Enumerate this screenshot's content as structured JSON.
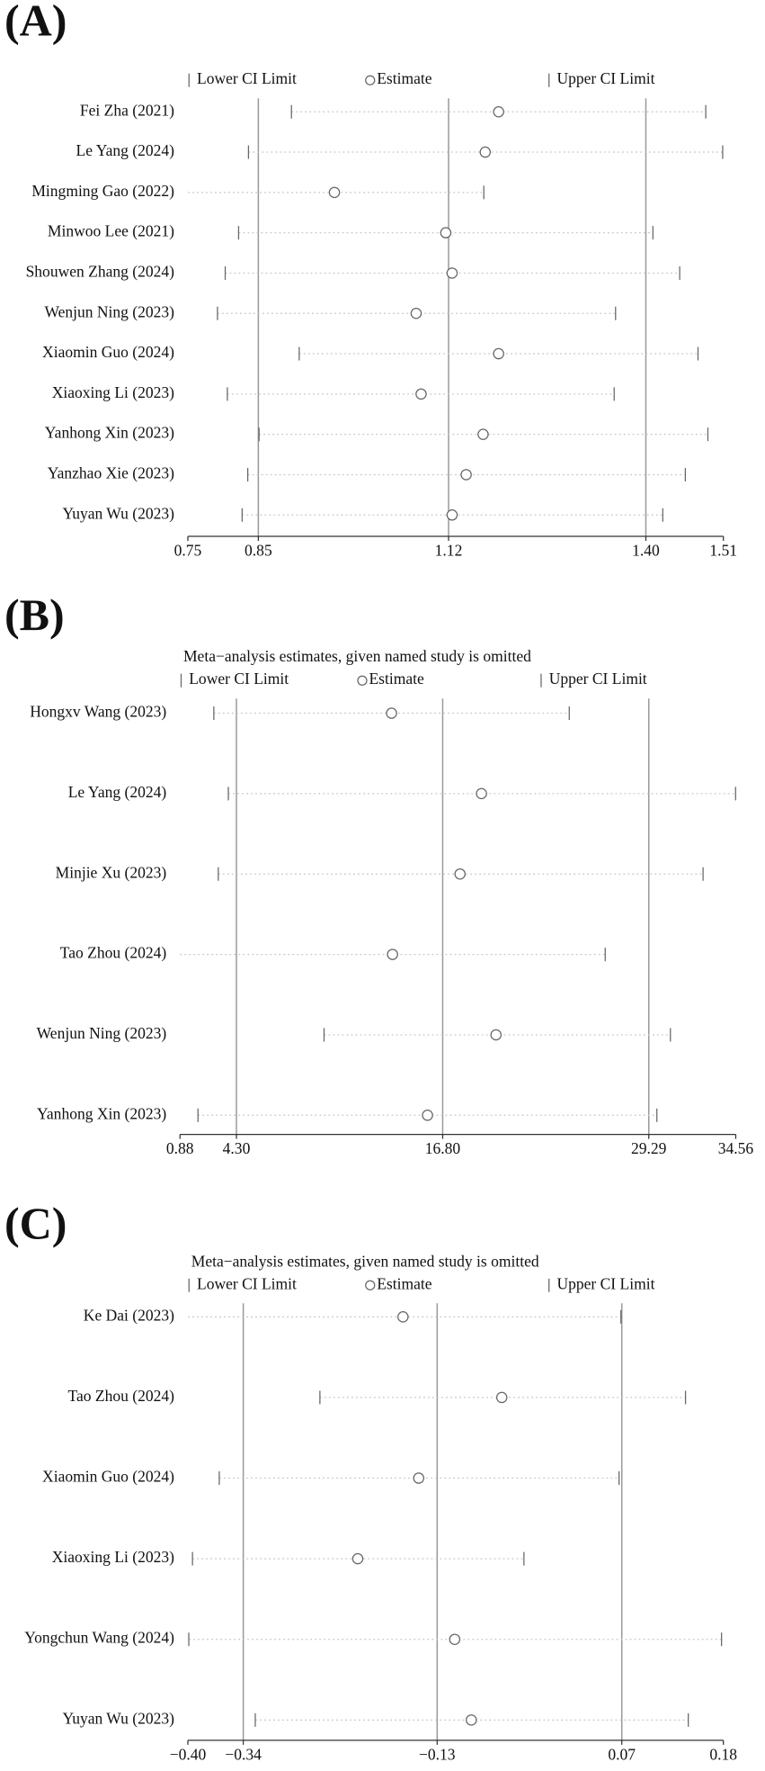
{
  "chart_data": [
    {
      "type": "forest",
      "label": "(A)",
      "categories": [
        "Fei Zha (2021)",
        "Le Yang (2024)",
        "Mingming Gao (2022)",
        "Minwoo Lee (2021)",
        "Shouwen Zhang (2024)",
        "Wenjun Ning (2023)",
        "Xiaomin Guo (2024)",
        "Xiaoxing Li (2023)",
        "Yanhong Xin (2023)",
        "Yanzhao Xie (2023)",
        "Yuyan Wu (2023)"
      ],
      "series": [
        {
          "name": "Lower CI Limit",
          "color": "#666666",
          "values": [
            0.897,
            0.836,
            null,
            0.822,
            0.803,
            0.792,
            0.908,
            0.806,
            0.851,
            0.835,
            0.827
          ]
        },
        {
          "name": "Estimate",
          "color": "#666666",
          "values": [
            1.191,
            1.172,
            0.958,
            1.116,
            1.125,
            1.074,
            1.191,
            1.081,
            1.169,
            1.145,
            1.125
          ]
        },
        {
          "name": "Upper CI Limit",
          "color": "#666666",
          "values": [
            1.485,
            1.509,
            1.17,
            1.41,
            1.448,
            1.357,
            1.474,
            1.355,
            1.488,
            1.456,
            1.424
          ]
        }
      ],
      "xlim": [
        0.75,
        1.51
      ],
      "xticks": [
        0.75,
        0.85,
        1.12,
        {
          "value": 1.4,
          "label": "1.40"
        },
        1.51
      ]
    },
    {
      "type": "forest",
      "label": "(B)",
      "title": "Meta−analysis estimates, given named study is omitted",
      "categories": [
        "Hongxv Wang (2023)",
        "Le Yang (2024)",
        "Minjie Xu (2023)",
        "Tao Zhou (2024)",
        "Wenjun Ning (2023)",
        "Yanhong Xin (2023)"
      ],
      "series": [
        {
          "name": "Lower CI Limit",
          "color": "#666666",
          "values": [
            2.93,
            3.81,
            3.2,
            null,
            9.61,
            1.97
          ]
        },
        {
          "name": "Estimate",
          "color": "#666666",
          "values": [
            13.7,
            19.15,
            17.85,
            13.76,
            20.03,
            15.88
          ]
        },
        {
          "name": "Upper CI Limit",
          "color": "#666666",
          "values": [
            24.47,
            34.55,
            32.58,
            26.65,
            30.6,
            29.78
          ]
        }
      ],
      "xlim": [
        0.88,
        34.56
      ],
      "xticks": [
        0.88,
        {
          "value": 4.3,
          "label": "4.30"
        },
        {
          "value": 16.8,
          "label": "16.80"
        },
        29.29,
        34.56
      ]
    },
    {
      "type": "forest",
      "label": "(C)",
      "title": "Meta−analysis estimates, given named study is omitted",
      "categories": [
        "Ke Dai (2023)",
        "Tao Zhou (2024)",
        "Xiaomin Guo (2024)",
        "Xiaoxing Li (2023)",
        "Yongchun Wang (2024)",
        "Yuyan Wu (2023)"
      ],
      "series": [
        {
          "name": "Lower CI Limit",
          "color": "#666666",
          "values": [
            null,
            -0.257,
            -0.366,
            -0.395,
            -0.399,
            -0.327
          ]
        },
        {
          "name": "Estimate",
          "color": "#666666",
          "values": [
            -0.167,
            -0.06,
            -0.15,
            -0.216,
            -0.111,
            -0.093
          ]
        },
        {
          "name": "Upper CI Limit",
          "color": "#666666",
          "values": [
            0.069,
            0.139,
            0.067,
            -0.036,
            0.178,
            0.142
          ]
        }
      ],
      "xlim": [
        -0.4,
        0.18
      ],
      "xticks": [
        {
          "value": -0.4,
          "label": "−0.40"
        },
        {
          "value": -0.34,
          "label": "−0.34"
        },
        {
          "value": -0.13,
          "label": "−0.13"
        },
        0.07,
        0.18
      ]
    }
  ]
}
